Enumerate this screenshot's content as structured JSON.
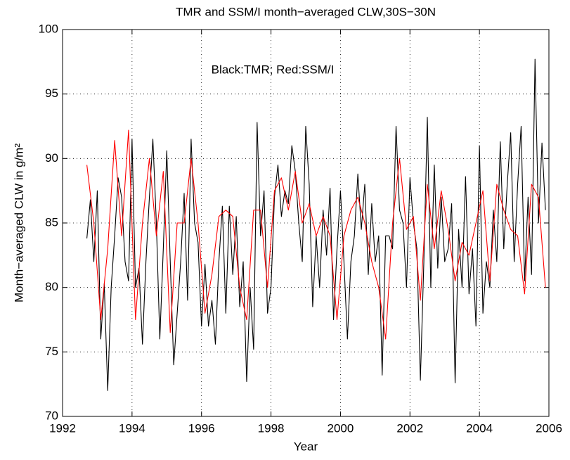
{
  "chart_data": {
    "type": "line",
    "title": "TMR and SSM/I month−averaged CLW,30S−30N",
    "x_label": "Year",
    "y_label": "Month−averaged CLW in g/m²",
    "annotation": "Black:TMR; Red:SSM/I",
    "xlim": [
      1992,
      2006
    ],
    "xticks": [
      1992,
      1994,
      1996,
      1998,
      2000,
      2002,
      2004,
      2006
    ],
    "ylim": [
      70,
      100
    ],
    "yticks": [
      70,
      75,
      80,
      85,
      90,
      95,
      100
    ],
    "grid": true,
    "series": [
      {
        "name": "TMR",
        "color": "#000000",
        "x": [
          1992.7,
          1992.8,
          1992.9,
          1993.0,
          1993.1,
          1993.2,
          1993.3,
          1993.4,
          1993.5,
          1993.6,
          1993.7,
          1993.8,
          1993.9,
          1994.0,
          1994.1,
          1994.2,
          1994.3,
          1994.4,
          1994.5,
          1994.6,
          1994.7,
          1994.8,
          1994.9,
          1995.0,
          1995.1,
          1995.2,
          1995.3,
          1995.4,
          1995.5,
          1995.6,
          1995.7,
          1995.8,
          1995.9,
          1996.0,
          1996.1,
          1996.2,
          1996.3,
          1996.4,
          1996.5,
          1996.6,
          1996.7,
          1996.8,
          1996.9,
          1997.0,
          1997.1,
          1997.2,
          1997.3,
          1997.4,
          1997.5,
          1997.6,
          1997.7,
          1997.8,
          1997.9,
          1998.0,
          1998.1,
          1998.2,
          1998.3,
          1998.4,
          1998.5,
          1998.6,
          1998.7,
          1998.8,
          1998.9,
          1999.0,
          1999.1,
          1999.2,
          1999.3,
          1999.4,
          1999.5,
          1999.6,
          1999.7,
          1999.8,
          1999.9,
          2000.0,
          2000.1,
          2000.2,
          2000.3,
          2000.4,
          2000.5,
          2000.6,
          2000.7,
          2000.8,
          2000.9,
          2001.0,
          2001.1,
          2001.2,
          2001.3,
          2001.4,
          2001.5,
          2001.6,
          2001.7,
          2001.8,
          2001.9,
          2002.0,
          2002.1,
          2002.2,
          2002.3,
          2002.4,
          2002.5,
          2002.6,
          2002.7,
          2002.8,
          2002.9,
          2003.0,
          2003.1,
          2003.2,
          2003.3,
          2003.4,
          2003.5,
          2003.6,
          2003.7,
          2003.8,
          2003.9,
          2004.0,
          2004.1,
          2004.2,
          2004.3,
          2004.4,
          2004.5,
          2004.6,
          2004.7,
          2004.8,
          2004.9,
          2005.0,
          2005.1,
          2005.2,
          2005.3,
          2005.4,
          2005.5,
          2005.6,
          2005.7,
          2005.8,
          2005.9
        ],
        "values": [
          83.8,
          86.8,
          82,
          87.5,
          76,
          80.3,
          72,
          80,
          84,
          88.5,
          87,
          82,
          80.5,
          91.5,
          80,
          81.5,
          75.6,
          82,
          87,
          91.5,
          85,
          76,
          83,
          90.6,
          82,
          74,
          78,
          82,
          87.3,
          79,
          91.5,
          85,
          83.5,
          77,
          81.8,
          77,
          79,
          75.6,
          82,
          86.3,
          78,
          86.3,
          81,
          85.5,
          78.5,
          82,
          72.7,
          80,
          75.2,
          92.8,
          84,
          87.5,
          78,
          80,
          87,
          89.5,
          85.5,
          87.5,
          86.5,
          91,
          89,
          85,
          82,
          92.5,
          88,
          78.5,
          84,
          80,
          86,
          82.5,
          87.7,
          77.5,
          83,
          87.5,
          82,
          76,
          82,
          84,
          88.8,
          84.5,
          88,
          81,
          86.5,
          82,
          84,
          73.2,
          84,
          84,
          83,
          92.5,
          86,
          85,
          80,
          88.5,
          85,
          83,
          72.8,
          82,
          93.2,
          80,
          89.5,
          81.5,
          87,
          82,
          83,
          86.5,
          72.6,
          84.5,
          80,
          88.6,
          79.5,
          83,
          77,
          91,
          78,
          82,
          80,
          86,
          82,
          91.3,
          83,
          88,
          92,
          82,
          88,
          92.5,
          80.5,
          87,
          81,
          97.7,
          85,
          91.2,
          86
        ]
      },
      {
        "name": "SSM/I",
        "color": "#ff0000",
        "x": [
          1992.7,
          1992.9,
          1993.1,
          1993.3,
          1993.5,
          1993.7,
          1993.9,
          1994.1,
          1994.3,
          1994.5,
          1994.7,
          1994.9,
          1995.1,
          1995.3,
          1995.5,
          1995.7,
          1995.9,
          1996.1,
          1996.3,
          1996.5,
          1996.7,
          1996.9,
          1997.1,
          1997.3,
          1997.5,
          1997.7,
          1997.9,
          1998.1,
          1998.3,
          1998.5,
          1998.7,
          1998.9,
          1999.1,
          1999.3,
          1999.5,
          1999.7,
          1999.9,
          2000.1,
          2000.3,
          2000.5,
          2000.7,
          2000.9,
          2001.1,
          2001.3,
          2001.5,
          2001.7,
          2001.9,
          2002.1,
          2002.3,
          2002.5,
          2002.7,
          2002.9,
          2003.1,
          2003.3,
          2003.5,
          2003.7,
          2003.9,
          2004.1,
          2004.3,
          2004.5,
          2004.7,
          2004.9,
          2005.1,
          2005.3,
          2005.5,
          2005.7,
          2005.9
        ],
        "values": [
          89.5,
          85,
          77.5,
          83,
          91.4,
          84,
          92.2,
          77.5,
          85,
          90,
          84,
          89,
          76.5,
          85,
          85,
          90,
          85,
          78,
          81,
          85.5,
          86,
          85.5,
          80,
          77.5,
          86,
          86,
          80,
          87.5,
          88.5,
          86,
          89,
          85,
          86.5,
          84,
          85.5,
          84,
          77.5,
          84,
          86,
          87,
          85,
          82,
          80,
          76,
          85,
          90,
          84.5,
          85.5,
          79,
          88,
          83,
          87.5,
          84.5,
          80.5,
          83.5,
          82.5,
          85,
          87.5,
          80.5,
          88,
          86,
          84.5,
          84,
          79.5,
          88,
          87,
          80
        ]
      }
    ]
  }
}
